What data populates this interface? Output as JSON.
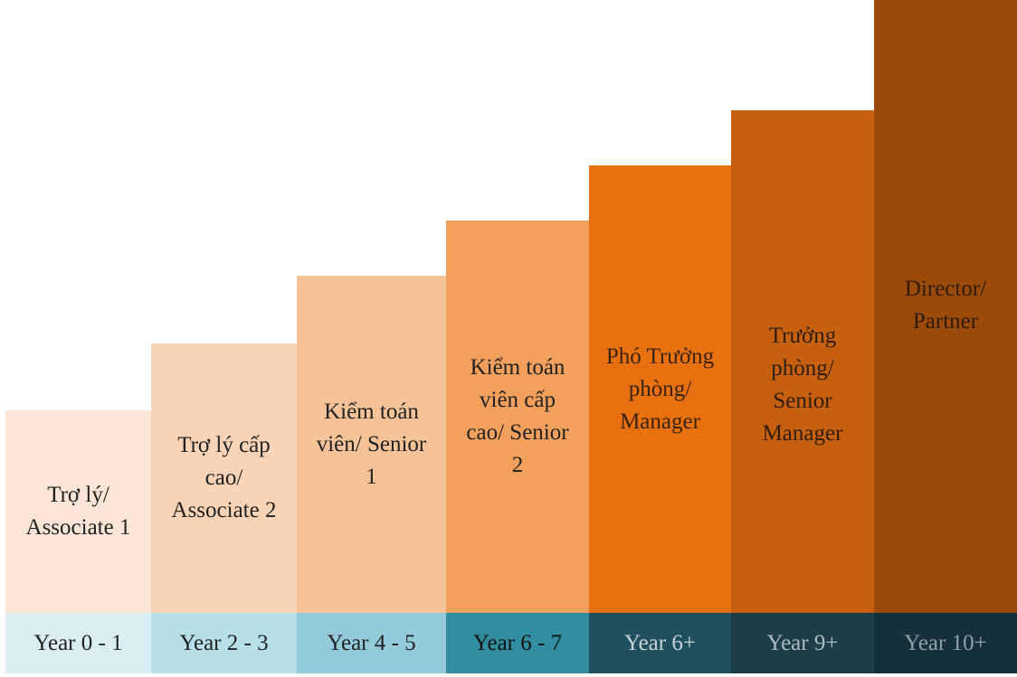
{
  "levels": [
    {
      "title": "Trợ lý/ Associate 1",
      "years": "Year 0 - 1",
      "level": 0.33,
      "color": "#fbe5d6",
      "text_color": "#222222",
      "year_bg": "#dbeef3",
      "year_color": "#222222"
    },
    {
      "title": "Trợ lý cấp cao/ Associate 2",
      "years": "Year 2 - 3",
      "level": 0.44,
      "color": "#f8d3b5",
      "text_color": "#222222",
      "year_bg": "#b7dfe8",
      "year_color": "#222222"
    },
    {
      "title": "Kiểm toán viên/ Senior 1",
      "years": "Year 4 - 5",
      "level": 0.55,
      "color": "#f6c399",
      "text_color": "#222222",
      "year_bg": "#93cbda",
      "year_color": "#222222"
    },
    {
      "title": "Kiểm toán viên cấp cao/ Senior 2",
      "years": "Year 6 - 7",
      "level": 0.64,
      "color": "#f2a05c",
      "text_color": "#222222",
      "year_bg": "#318ea0",
      "year_color": "#111111"
    },
    {
      "title": "Phó Trưởng phòng/ Manager",
      "years": "Year 6+",
      "level": 0.73,
      "color": "#e9700f",
      "text_color": "#3a2410",
      "year_bg": "#204f60",
      "year_color": "#c9d3d6"
    },
    {
      "title": "Trưởng phòng/ Senior Manager",
      "years": "Year 9+",
      "level": 0.82,
      "color": "#c65f0e",
      "text_color": "#2e1e10",
      "year_bg": "#1d3d48",
      "year_color": "#aebcc0"
    },
    {
      "title": "Director/ Partner",
      "years": "Year 10+",
      "level": 1.0,
      "color": "#9c4a09",
      "text_color": "#2e1c0e",
      "year_bg": "#15303a",
      "year_color": "#8fa2a8"
    }
  ]
}
